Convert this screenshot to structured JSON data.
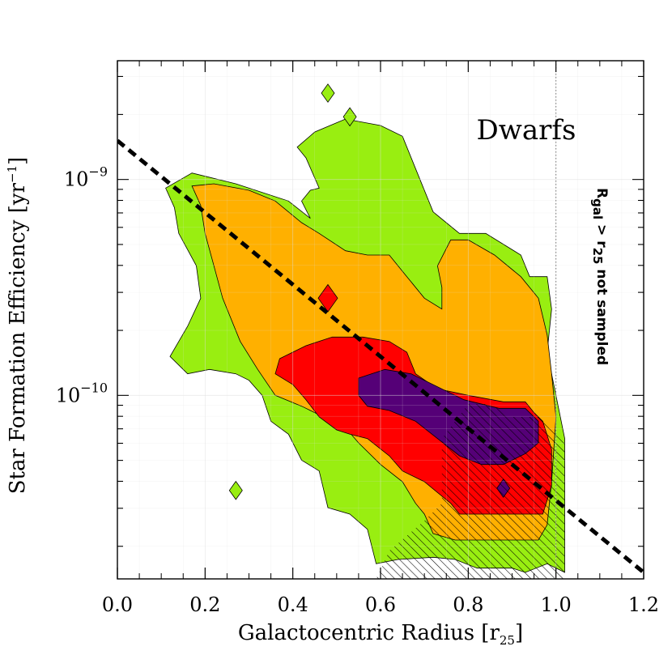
{
  "chart_data": {
    "type": "contour",
    "title": "",
    "panel_label": "Dwarfs",
    "xlabel": "Galactocentric Radius [r",
    "xlabel_sub": "25",
    "xlabel_end": "]",
    "ylabel": "Star Formation Efficiency [yr",
    "ylabel_sup": "−1",
    "ylabel_end": "]",
    "xlim": [
      0.0,
      1.2
    ],
    "ylog10lim": [
      -10.85,
      -8.45
    ],
    "x_ticks": [
      "0.0",
      "0.2",
      "0.4",
      "0.6",
      "0.8",
      "1.0",
      "1.2"
    ],
    "x_tick_values": [
      0.0,
      0.2,
      0.4,
      0.6,
      0.8,
      1.0,
      1.2
    ],
    "y_ticks": [
      {
        "base": "10",
        "exp": "−9",
        "log10": -9
      },
      {
        "base": "10",
        "exp": "−10",
        "log10": -10
      }
    ],
    "grid": true,
    "colors": {
      "green": "#99ee11",
      "orange": "#ffb000",
      "red": "#ff0000",
      "purple": "#550077",
      "line": "#000000",
      "grid": "#dddddd"
    },
    "contour_levels": [
      {
        "name": "green",
        "points": [
          [
            0.11,
            -9.04
          ],
          [
            0.17,
            -8.97
          ],
          [
            0.27,
            -9.02
          ],
          [
            0.39,
            -9.1
          ],
          [
            0.44,
            -9.18
          ],
          [
            0.42,
            -9.1
          ],
          [
            0.44,
            -9.05
          ],
          [
            0.46,
            -9.04
          ],
          [
            0.43,
            -8.9
          ],
          [
            0.41,
            -8.85
          ],
          [
            0.45,
            -8.78
          ],
          [
            0.52,
            -8.72
          ],
          [
            0.6,
            -8.75
          ],
          [
            0.65,
            -8.8
          ],
          [
            0.68,
            -8.95
          ],
          [
            0.72,
            -9.15
          ],
          [
            0.78,
            -9.25
          ],
          [
            0.84,
            -9.25
          ],
          [
            0.92,
            -9.35
          ],
          [
            0.94,
            -9.45
          ],
          [
            0.98,
            -9.45
          ],
          [
            0.99,
            -9.6
          ],
          [
            0.98,
            -9.8
          ],
          [
            1.0,
            -10.0
          ],
          [
            1.02,
            -10.2
          ],
          [
            1.02,
            -10.5
          ],
          [
            1.02,
            -10.82
          ],
          [
            0.98,
            -10.78
          ],
          [
            0.93,
            -10.82
          ],
          [
            0.9,
            -10.8
          ],
          [
            0.82,
            -10.8
          ],
          [
            0.77,
            -10.76
          ],
          [
            0.72,
            -10.75
          ],
          [
            0.64,
            -10.76
          ],
          [
            0.59,
            -10.78
          ],
          [
            0.57,
            -10.62
          ],
          [
            0.53,
            -10.55
          ],
          [
            0.48,
            -10.52
          ],
          [
            0.46,
            -10.35
          ],
          [
            0.42,
            -10.3
          ],
          [
            0.39,
            -10.18
          ],
          [
            0.35,
            -10.12
          ],
          [
            0.33,
            -10.0
          ],
          [
            0.3,
            -9.93
          ],
          [
            0.27,
            -9.9
          ],
          [
            0.21,
            -9.88
          ],
          [
            0.16,
            -9.9
          ],
          [
            0.12,
            -9.82
          ],
          [
            0.16,
            -9.68
          ],
          [
            0.19,
            -9.55
          ],
          [
            0.18,
            -9.4
          ],
          [
            0.14,
            -9.25
          ],
          [
            0.13,
            -9.13
          ]
        ]
      },
      {
        "name": "orange",
        "points": [
          [
            0.17,
            -9.03
          ],
          [
            0.22,
            -9.02
          ],
          [
            0.3,
            -9.05
          ],
          [
            0.36,
            -9.1
          ],
          [
            0.42,
            -9.2
          ],
          [
            0.46,
            -9.25
          ],
          [
            0.52,
            -9.33
          ],
          [
            0.57,
            -9.35
          ],
          [
            0.62,
            -9.35
          ],
          [
            0.66,
            -9.45
          ],
          [
            0.7,
            -9.55
          ],
          [
            0.74,
            -9.6
          ],
          [
            0.74,
            -9.5
          ],
          [
            0.73,
            -9.4
          ],
          [
            0.76,
            -9.28
          ],
          [
            0.8,
            -9.28
          ],
          [
            0.86,
            -9.35
          ],
          [
            0.92,
            -9.45
          ],
          [
            0.96,
            -9.55
          ],
          [
            0.98,
            -9.72
          ],
          [
            0.99,
            -9.9
          ],
          [
            1.0,
            -10.1
          ],
          [
            0.99,
            -10.4
          ],
          [
            0.98,
            -10.6
          ],
          [
            0.96,
            -10.67
          ],
          [
            0.9,
            -10.67
          ],
          [
            0.84,
            -10.67
          ],
          [
            0.77,
            -10.67
          ],
          [
            0.72,
            -10.64
          ],
          [
            0.7,
            -10.55
          ],
          [
            0.68,
            -10.5
          ],
          [
            0.65,
            -10.4
          ],
          [
            0.6,
            -10.32
          ],
          [
            0.55,
            -10.22
          ],
          [
            0.52,
            -10.15
          ],
          [
            0.47,
            -10.1
          ],
          [
            0.42,
            -10.05
          ],
          [
            0.36,
            -10.0
          ],
          [
            0.32,
            -9.88
          ],
          [
            0.28,
            -9.75
          ],
          [
            0.24,
            -9.55
          ],
          [
            0.22,
            -9.4
          ],
          [
            0.2,
            -9.25
          ],
          [
            0.19,
            -9.12
          ]
        ]
      },
      {
        "name": "red",
        "points": [
          [
            0.37,
            -9.83
          ],
          [
            0.43,
            -9.77
          ],
          [
            0.49,
            -9.73
          ],
          [
            0.56,
            -9.73
          ],
          [
            0.62,
            -9.75
          ],
          [
            0.66,
            -9.8
          ],
          [
            0.68,
            -9.9
          ],
          [
            0.73,
            -9.97
          ],
          [
            0.8,
            -10.0
          ],
          [
            0.88,
            -10.03
          ],
          [
            0.93,
            -10.03
          ],
          [
            0.95,
            -10.08
          ],
          [
            0.97,
            -10.12
          ],
          [
            0.99,
            -10.25
          ],
          [
            0.99,
            -10.42
          ],
          [
            0.97,
            -10.55
          ],
          [
            0.9,
            -10.55
          ],
          [
            0.83,
            -10.55
          ],
          [
            0.78,
            -10.55
          ],
          [
            0.76,
            -10.5
          ],
          [
            0.73,
            -10.45
          ],
          [
            0.7,
            -10.4
          ],
          [
            0.65,
            -10.35
          ],
          [
            0.62,
            -10.28
          ],
          [
            0.57,
            -10.2
          ],
          [
            0.53,
            -10.18
          ],
          [
            0.5,
            -10.16
          ],
          [
            0.46,
            -10.1
          ],
          [
            0.43,
            -10.02
          ],
          [
            0.4,
            -9.95
          ],
          [
            0.36,
            -9.9
          ]
        ]
      },
      {
        "name": "purple",
        "points": [
          [
            0.55,
            -9.92
          ],
          [
            0.61,
            -9.88
          ],
          [
            0.67,
            -9.9
          ],
          [
            0.73,
            -9.96
          ],
          [
            0.79,
            -10.02
          ],
          [
            0.87,
            -10.06
          ],
          [
            0.93,
            -10.06
          ],
          [
            0.96,
            -10.12
          ],
          [
            0.96,
            -10.22
          ],
          [
            0.93,
            -10.27
          ],
          [
            0.88,
            -10.32
          ],
          [
            0.83,
            -10.32
          ],
          [
            0.78,
            -10.28
          ],
          [
            0.73,
            -10.2
          ],
          [
            0.68,
            -10.12
          ],
          [
            0.62,
            -10.07
          ],
          [
            0.57,
            -10.05
          ],
          [
            0.55,
            -10.0
          ]
        ]
      }
    ],
    "islands": [
      {
        "level": "green",
        "x": 0.48,
        "log10y": -8.6
      },
      {
        "level": "green",
        "x": 0.53,
        "log10y": -8.71
      },
      {
        "level": "green",
        "x": 0.27,
        "log10y": -10.44
      },
      {
        "level": "red",
        "x": 0.48,
        "log10y": -9.55
      },
      {
        "level": "purple",
        "x": 0.88,
        "log10y": -10.43
      }
    ],
    "fit_line": {
      "style": "dashed",
      "x": [
        0.0,
        1.2
      ],
      "log10y": [
        -8.82,
        -10.82
      ]
    },
    "vertical_marker": {
      "x": 1.0,
      "style": "dotted"
    },
    "hatched_region": {
      "label": "R",
      "label_sub": "gal",
      "label_mid": " > r",
      "label_sub2": "25",
      "label_end": " not sampled",
      "points": [
        [
          0.74,
          -10.2
        ],
        [
          0.8,
          -10.04
        ],
        [
          0.85,
          -10.04
        ],
        [
          0.9,
          -10.1
        ],
        [
          0.97,
          -10.1
        ],
        [
          1.02,
          -10.2
        ],
        [
          1.02,
          -10.85
        ],
        [
          0.59,
          -10.85
        ],
        [
          0.62,
          -10.72
        ],
        [
          0.7,
          -10.58
        ],
        [
          0.74,
          -10.5
        ]
      ]
    }
  }
}
